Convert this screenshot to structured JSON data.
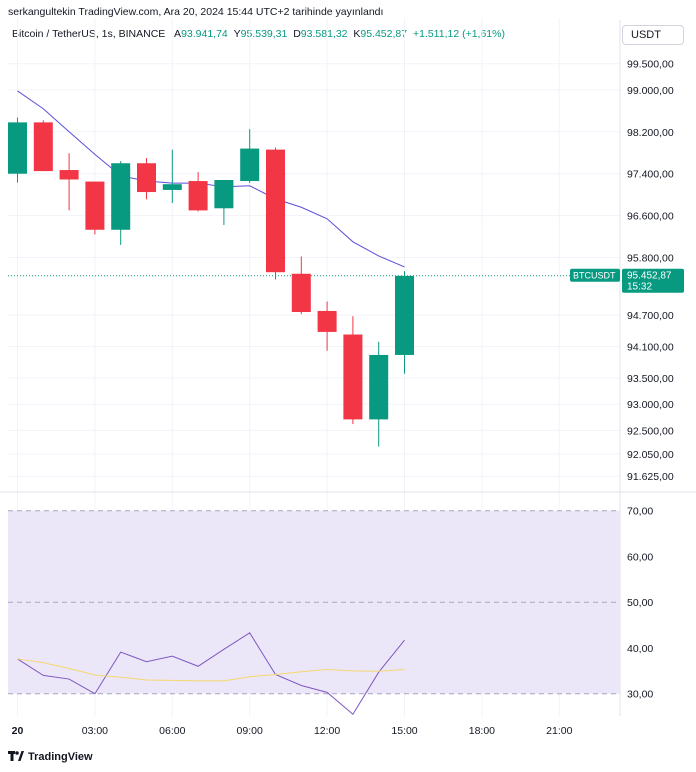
{
  "header": {
    "published_line": "serkangultekin TradingView.com, Ara 20, 2024 15:44 UTC+2 tarihinde yayınlandı"
  },
  "legend": {
    "symbol_label": "Bitcoin / TetherUS, 1s, BINANCE",
    "o_label": "A",
    "o_value": "93.941,74",
    "h_label": "Y",
    "h_value": "95.539,31",
    "l_label": "D",
    "l_value": "93.581,32",
    "c_label": "K",
    "c_value": "95.452,87",
    "change": "+1.511,12 (+1,61%)"
  },
  "toolbar": {
    "currency": "USDT"
  },
  "price_tag": {
    "symbol": "BTCUSDT",
    "price": "95.452,87",
    "countdown": "15:32"
  },
  "footer": {
    "brand": "TradingView",
    "logo": "tradingview-logo-icon"
  },
  "colors": {
    "up": "#089981",
    "down": "#f23645",
    "ma_line": "#5c4fd8",
    "rsi_line": "#7e57c2",
    "rsi_ma": "#f5d76e",
    "rsi_band": "#ece7f8"
  },
  "chart_data": [
    {
      "type": "candlestick",
      "ylim": [
        91400,
        99800
      ],
      "y_ticks": [
        "99.500,00",
        "99.000,00",
        "98.200,00",
        "97.400,00",
        "96.600,00",
        "95.800,00",
        "94.700,00",
        "94.100,00",
        "93.500,00",
        "93.000,00",
        "92.500,00",
        "92.050,00",
        "91.625,00"
      ],
      "y_tick_values": [
        99500,
        99000,
        98200,
        97400,
        96600,
        95800,
        94700,
        94100,
        93500,
        93000,
        92500,
        92050,
        91625
      ],
      "x_ticks": [
        "20",
        "03:00",
        "06:00",
        "09:00",
        "12:00",
        "15:00",
        "18:00",
        "21:00"
      ],
      "x_tick_hours": [
        0,
        3,
        6,
        9,
        12,
        15,
        18,
        21
      ],
      "candles": [
        {
          "t": 0,
          "o": 97400,
          "h": 98470,
          "l": 97230,
          "c": 98380
        },
        {
          "t": 1,
          "o": 98380,
          "h": 98420,
          "l": 97450,
          "c": 97450
        },
        {
          "t": 2,
          "o": 97470,
          "h": 97790,
          "l": 96700,
          "c": 97290
        },
        {
          "t": 3,
          "o": 97250,
          "h": 97250,
          "l": 96240,
          "c": 96330
        },
        {
          "t": 4,
          "o": 96330,
          "h": 97640,
          "l": 96040,
          "c": 97600
        },
        {
          "t": 5,
          "o": 97600,
          "h": 97700,
          "l": 96910,
          "c": 97050
        },
        {
          "t": 6,
          "o": 97090,
          "h": 97860,
          "l": 96840,
          "c": 97200
        },
        {
          "t": 7,
          "o": 97260,
          "h": 97430,
          "l": 96680,
          "c": 96700
        },
        {
          "t": 8,
          "o": 96740,
          "h": 97250,
          "l": 96420,
          "c": 97280
        },
        {
          "t": 9,
          "o": 97260,
          "h": 98250,
          "l": 97220,
          "c": 97880
        },
        {
          "t": 10,
          "o": 97860,
          "h": 97900,
          "l": 95380,
          "c": 95520
        },
        {
          "t": 11,
          "o": 95490,
          "h": 95820,
          "l": 94720,
          "c": 94760
        },
        {
          "t": 12,
          "o": 94780,
          "h": 94960,
          "l": 94020,
          "c": 94380
        },
        {
          "t": 13,
          "o": 94330,
          "h": 94680,
          "l": 92620,
          "c": 92710
        },
        {
          "t": 14,
          "o": 92710,
          "h": 94190,
          "l": 92190,
          "c": 93940
        },
        {
          "t": 15,
          "o": 93940,
          "h": 95540,
          "l": 93580,
          "c": 95450
        }
      ],
      "ma_line": [
        98980,
        98640,
        98200,
        97770,
        97360,
        97260,
        97220,
        97220,
        97150,
        97170,
        96920,
        96760,
        96540,
        96100,
        95830,
        95620
      ],
      "last_price": 95452.87
    },
    {
      "type": "line",
      "ylim": [
        26,
        73
      ],
      "y_ticks": [
        "70,00",
        "60,00",
        "50,00",
        "40,00",
        "30,00"
      ],
      "y_tick_values": [
        70,
        60,
        50,
        40,
        30
      ],
      "band": [
        30,
        70
      ],
      "series": [
        {
          "values": [
            37.6,
            34.0,
            33.2,
            30.0,
            39.1,
            37.0,
            38.2,
            36.0,
            39.7,
            43.3,
            34.2,
            31.8,
            30.3,
            25.5,
            34.7,
            41.7
          ]
        },
        {
          "values": [
            37.6,
            36.8,
            35.5,
            34.1,
            33.6,
            33.0,
            32.9,
            32.8,
            32.8,
            33.7,
            34.2,
            34.8,
            35.3,
            35.0,
            34.9,
            35.3
          ]
        }
      ]
    }
  ]
}
